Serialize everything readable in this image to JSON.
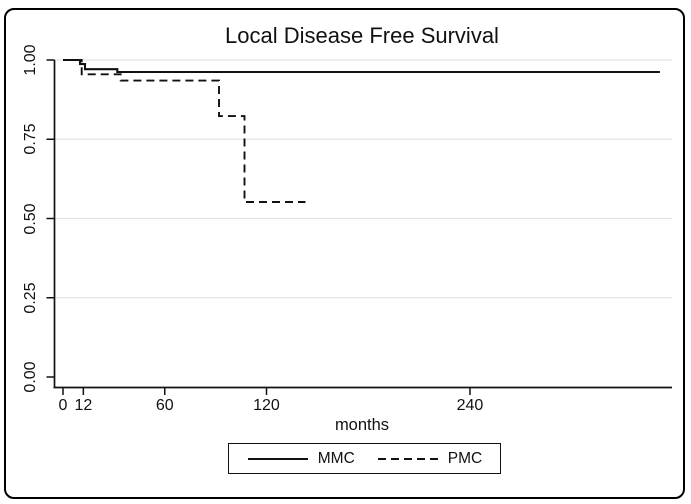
{
  "window": {
    "background_color": "#ffffff",
    "frame_border_color": "#000000"
  },
  "chart_data": {
    "type": "line",
    "subtype": "kaplan-meier-step-survival",
    "title": "Local Disease Free Survival",
    "xlabel": "months",
    "ylabel": "",
    "xlim": [
      0,
      359
    ],
    "ylim": [
      0.0,
      1.0
    ],
    "grid": "horizontal gridlines at y ticks",
    "gridline_color": "#e4e4e4",
    "axis_color": "#111111",
    "line_color": "#111111",
    "legend_position": "bottom-center-outside",
    "xticks": [
      {
        "value": 0,
        "label": "0"
      },
      {
        "value": 12,
        "label": "12"
      },
      {
        "value": 60,
        "label": "60"
      },
      {
        "value": 120,
        "label": "120"
      },
      {
        "value": 240,
        "label": "240"
      }
    ],
    "yticks": [
      {
        "value": 0.0,
        "label": "0.00"
      },
      {
        "value": 0.25,
        "label": "0.25"
      },
      {
        "value": 0.5,
        "label": "0.50"
      },
      {
        "value": 0.75,
        "label": "0.75"
      },
      {
        "value": 1.0,
        "label": "1.00"
      }
    ],
    "series": [
      {
        "name": "MMC",
        "line_style": "solid",
        "color": "#111111",
        "points": [
          [
            0,
            1.0
          ],
          [
            10,
            1.0
          ],
          [
            10,
            0.987
          ],
          [
            13,
            0.987
          ],
          [
            13,
            0.971
          ],
          [
            32,
            0.971
          ],
          [
            32,
            0.962
          ],
          [
            352,
            0.962
          ]
        ]
      },
      {
        "name": "PMC",
        "line_style": "dashed",
        "color": "#111111",
        "points": [
          [
            0,
            1.0
          ],
          [
            11,
            1.0
          ],
          [
            11,
            0.955
          ],
          [
            34,
            0.955
          ],
          [
            34,
            0.935
          ],
          [
            92,
            0.935
          ],
          [
            92,
            0.823
          ],
          [
            107,
            0.823
          ],
          [
            107,
            0.552
          ],
          [
            143,
            0.552
          ]
        ]
      }
    ]
  }
}
